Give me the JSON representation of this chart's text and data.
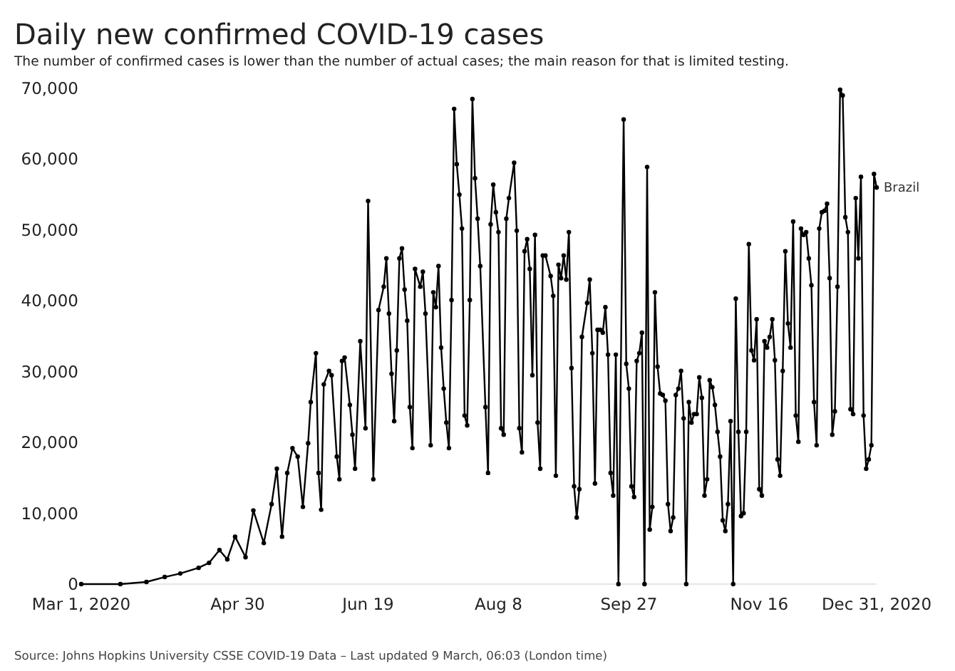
{
  "chart_data": {
    "type": "line",
    "title": "Daily new confirmed COVID-19 cases",
    "subtitle": "The number of confirmed cases is lower than the number of actual cases; the main reason for that is limited testing.",
    "annotations": [
      "Source: Johns Hopkins University CSSE COVID-19 Data – Last updated 9 March, 06:03 (London time)"
    ],
    "x": [
      "2020-03-01",
      "2020-03-16",
      "2020-03-26",
      "2020-04-02",
      "2020-04-08",
      "2020-04-15",
      "2020-04-19",
      "2020-04-23",
      "2020-04-26",
      "2020-04-29",
      "2020-05-03",
      "2020-05-06",
      "2020-05-10",
      "2020-05-13",
      "2020-05-15",
      "2020-05-17",
      "2020-05-19",
      "2020-05-21",
      "2020-05-23",
      "2020-05-25",
      "2020-05-27",
      "2020-05-28",
      "2020-05-30",
      "2020-05-31",
      "2020-06-01",
      "2020-06-02",
      "2020-06-04",
      "2020-06-05",
      "2020-06-07",
      "2020-06-08",
      "2020-06-09",
      "2020-06-10",
      "2020-06-12",
      "2020-06-13",
      "2020-06-14",
      "2020-06-16",
      "2020-06-18",
      "2020-06-19",
      "2020-06-21",
      "2020-06-23",
      "2020-06-25",
      "2020-06-26",
      "2020-06-27",
      "2020-06-28",
      "2020-06-29",
      "2020-06-30",
      "2020-07-01",
      "2020-07-02",
      "2020-07-03",
      "2020-07-04",
      "2020-07-05",
      "2020-07-06",
      "2020-07-07",
      "2020-07-09",
      "2020-07-10",
      "2020-07-11",
      "2020-07-13",
      "2020-07-14",
      "2020-07-15",
      "2020-07-16",
      "2020-07-17",
      "2020-07-18",
      "2020-07-19",
      "2020-07-20",
      "2020-07-21",
      "2020-07-22",
      "2020-07-23",
      "2020-07-24",
      "2020-07-25",
      "2020-07-26",
      "2020-07-27",
      "2020-07-28",
      "2020-07-29",
      "2020-07-30",
      "2020-07-31",
      "2020-08-01",
      "2020-08-03",
      "2020-08-04",
      "2020-08-05",
      "2020-08-06",
      "2020-08-07",
      "2020-08-08",
      "2020-08-09",
      "2020-08-10",
      "2020-08-11",
      "2020-08-12",
      "2020-08-14",
      "2020-08-15",
      "2020-08-16",
      "2020-08-17",
      "2020-08-18",
      "2020-08-19",
      "2020-08-20",
      "2020-08-21",
      "2020-08-22",
      "2020-08-23",
      "2020-08-24",
      "2020-08-25",
      "2020-08-26",
      "2020-08-28",
      "2020-08-29",
      "2020-08-30",
      "2020-08-31",
      "2020-09-01",
      "2020-09-02",
      "2020-09-03",
      "2020-09-04",
      "2020-09-05",
      "2020-09-06",
      "2020-09-07",
      "2020-09-08",
      "2020-09-09",
      "2020-09-11",
      "2020-09-12",
      "2020-09-13",
      "2020-09-14",
      "2020-09-15",
      "2020-09-16",
      "2020-09-17",
      "2020-09-18",
      "2020-09-19",
      "2020-09-20",
      "2020-09-21",
      "2020-09-22",
      "2020-09-23",
      "2020-09-25",
      "2020-09-26",
      "2020-09-27",
      "2020-09-28",
      "2020-09-29",
      "2020-09-30",
      "2020-10-01",
      "2020-10-02",
      "2020-10-03",
      "2020-10-04",
      "2020-10-05",
      "2020-10-06",
      "2020-10-07",
      "2020-10-08",
      "2020-10-09",
      "2020-10-10",
      "2020-10-11",
      "2020-10-12",
      "2020-10-13",
      "2020-10-14",
      "2020-10-15",
      "2020-10-16",
      "2020-10-17",
      "2020-10-18",
      "2020-10-19",
      "2020-10-20",
      "2020-10-21",
      "2020-10-22",
      "2020-10-23",
      "2020-10-24",
      "2020-10-25",
      "2020-10-26",
      "2020-10-27",
      "2020-10-28",
      "2020-10-29",
      "2020-10-30",
      "2020-10-31",
      "2020-11-01",
      "2020-11-02",
      "2020-11-03",
      "2020-11-04",
      "2020-11-05",
      "2020-11-06",
      "2020-11-07",
      "2020-11-08",
      "2020-11-09",
      "2020-11-10",
      "2020-11-11",
      "2020-11-12",
      "2020-11-13",
      "2020-11-14",
      "2020-11-15",
      "2020-11-16",
      "2020-11-17",
      "2020-11-18",
      "2020-11-19",
      "2020-11-20",
      "2020-11-21",
      "2020-11-22",
      "2020-11-23",
      "2020-11-24",
      "2020-11-25",
      "2020-11-26",
      "2020-11-27",
      "2020-11-28",
      "2020-11-29",
      "2020-11-30",
      "2020-12-01",
      "2020-12-02",
      "2020-12-03",
      "2020-12-04",
      "2020-12-05",
      "2020-12-06",
      "2020-12-07",
      "2020-12-08",
      "2020-12-09",
      "2020-12-10",
      "2020-12-11",
      "2020-12-12",
      "2020-12-13",
      "2020-12-14",
      "2020-12-15",
      "2020-12-16",
      "2020-12-17",
      "2020-12-18",
      "2020-12-19",
      "2020-12-20",
      "2020-12-21",
      "2020-12-22",
      "2020-12-23",
      "2020-12-24",
      "2020-12-25",
      "2020-12-26",
      "2020-12-27",
      "2020-12-28",
      "2020-12-29",
      "2020-12-30",
      "2020-12-31"
    ],
    "series": [
      {
        "name": "Brazil",
        "color": "#000000",
        "values": [
          0,
          0,
          300,
          1000,
          1500,
          2300,
          3000,
          4800,
          3500,
          6700,
          3800,
          10400,
          5800,
          11300,
          16300,
          6700,
          15700,
          19200,
          18000,
          10900,
          19900,
          25700,
          32600,
          15700,
          10500,
          28200,
          30100,
          29500,
          18000,
          14800,
          31500,
          32000,
          25300,
          21100,
          16300,
          34300,
          22000,
          54100,
          14800,
          38700,
          42000,
          46000,
          38200,
          29700,
          23000,
          33000,
          46000,
          47400,
          41600,
          37200,
          25000,
          19200,
          44500,
          42000,
          44100,
          38200,
          19600,
          41200,
          39100,
          44900,
          33400,
          27600,
          22800,
          19200,
          40100,
          67100,
          59300,
          55000,
          50200,
          23800,
          22400,
          40100,
          68500,
          57300,
          51600,
          44900,
          25000,
          15700,
          50800,
          56400,
          52500,
          49700,
          22000,
          21100,
          51600,
          54500,
          59500,
          49900,
          22000,
          18600,
          47000,
          48700,
          44500,
          29500,
          49300,
          22800,
          16300,
          46400,
          46400,
          43500,
          40700,
          15300,
          45100,
          43200,
          46400,
          43000,
          49700,
          30500,
          13800,
          9400,
          13400,
          34900,
          39700,
          43000,
          32600,
          14200,
          35900,
          35900,
          35500,
          39100,
          32400,
          15700,
          12500,
          32400,
          0,
          65600,
          31100,
          27600,
          13800,
          12300,
          31500,
          32600,
          35500,
          0,
          58900,
          7700,
          10900,
          41200,
          30700,
          26900,
          26700,
          25900,
          11300,
          7500,
          9400,
          26700,
          27600,
          30100,
          23400,
          0,
          25700,
          22800,
          24000,
          24000,
          29200,
          26300,
          12500,
          14800,
          28800,
          27800,
          25300,
          21500,
          18000,
          9000,
          7500,
          11300,
          23000,
          0,
          40300,
          21500,
          9600,
          10000,
          21500,
          48000,
          33000,
          31600,
          37400,
          13400,
          12500,
          34300,
          33400,
          34900,
          37400,
          31600,
          17600,
          15300,
          30100,
          47000,
          36800,
          33400,
          51200,
          23800,
          20100,
          50200,
          49300,
          49700,
          46000,
          42200,
          25700,
          19600,
          50200,
          52500,
          52700,
          53700,
          43200,
          21100,
          24400,
          42000,
          69800,
          69000,
          51800,
          49700,
          24700,
          24000,
          54500,
          46000,
          57500,
          23800,
          16300,
          17600,
          19600,
          57900,
          56000
        ]
      }
    ],
    "xlim": [
      "2020-03-01",
      "2020-12-31"
    ],
    "xticks": [
      {
        "value": "2020-03-01",
        "label": "Mar 1, 2020"
      },
      {
        "value": "2020-04-30",
        "label": "Apr 30"
      },
      {
        "value": "2020-06-19",
        "label": "Jun 19"
      },
      {
        "value": "2020-08-08",
        "label": "Aug 8"
      },
      {
        "value": "2020-09-27",
        "label": "Sep 27"
      },
      {
        "value": "2020-11-16",
        "label": "Nov 16"
      },
      {
        "value": "2020-12-31",
        "label": "Dec 31, 2020"
      }
    ],
    "ylim": [
      0,
      70000
    ],
    "yticks": [
      0,
      {
        "value": 10000,
        "label": "10,000"
      },
      {
        "value": 20000,
        "label": "20,000"
      },
      {
        "value": 30000,
        "label": "30,000"
      },
      {
        "value": 40000,
        "label": "40,000"
      },
      {
        "value": 50000,
        "label": "50,000"
      },
      {
        "value": 60000,
        "label": "60,000"
      },
      {
        "value": 70000,
        "label": "70,000"
      }
    ],
    "marker": "circle",
    "line_style": "solid",
    "grid": false
  }
}
